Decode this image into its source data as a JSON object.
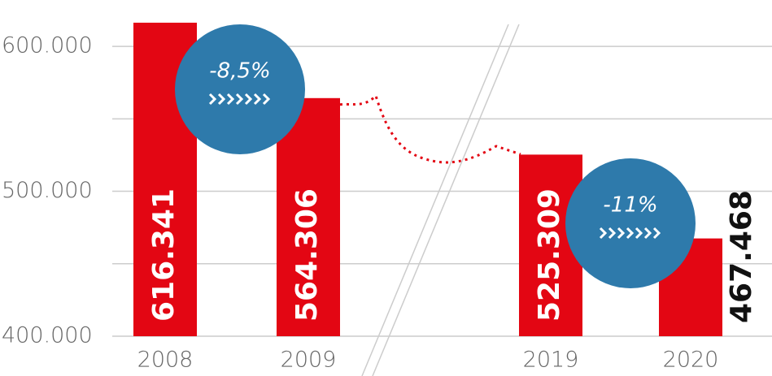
{
  "chart_data": {
    "type": "bar",
    "categories": [
      "2008",
      "2009",
      "2019",
      "2020"
    ],
    "values": [
      616341,
      564306,
      525309,
      467468
    ],
    "value_labels": [
      "616.341",
      "564.306",
      "525.309",
      "467.468"
    ],
    "color": "#e30613",
    "ylim": [
      400000,
      632000
    ],
    "yticks": [
      {
        "value": 400000,
        "label": "400.000"
      },
      {
        "value": 500000,
        "label": "500.000"
      },
      {
        "value": 600000,
        "label": "600.000"
      }
    ],
    "minor_gridlines": [
      450000,
      550000
    ],
    "grid": true,
    "annotations": [
      {
        "text": "-8,5%",
        "color": "#2e7aab"
      },
      {
        "text": "-11%",
        "color": "#2e7aab"
      }
    ]
  }
}
